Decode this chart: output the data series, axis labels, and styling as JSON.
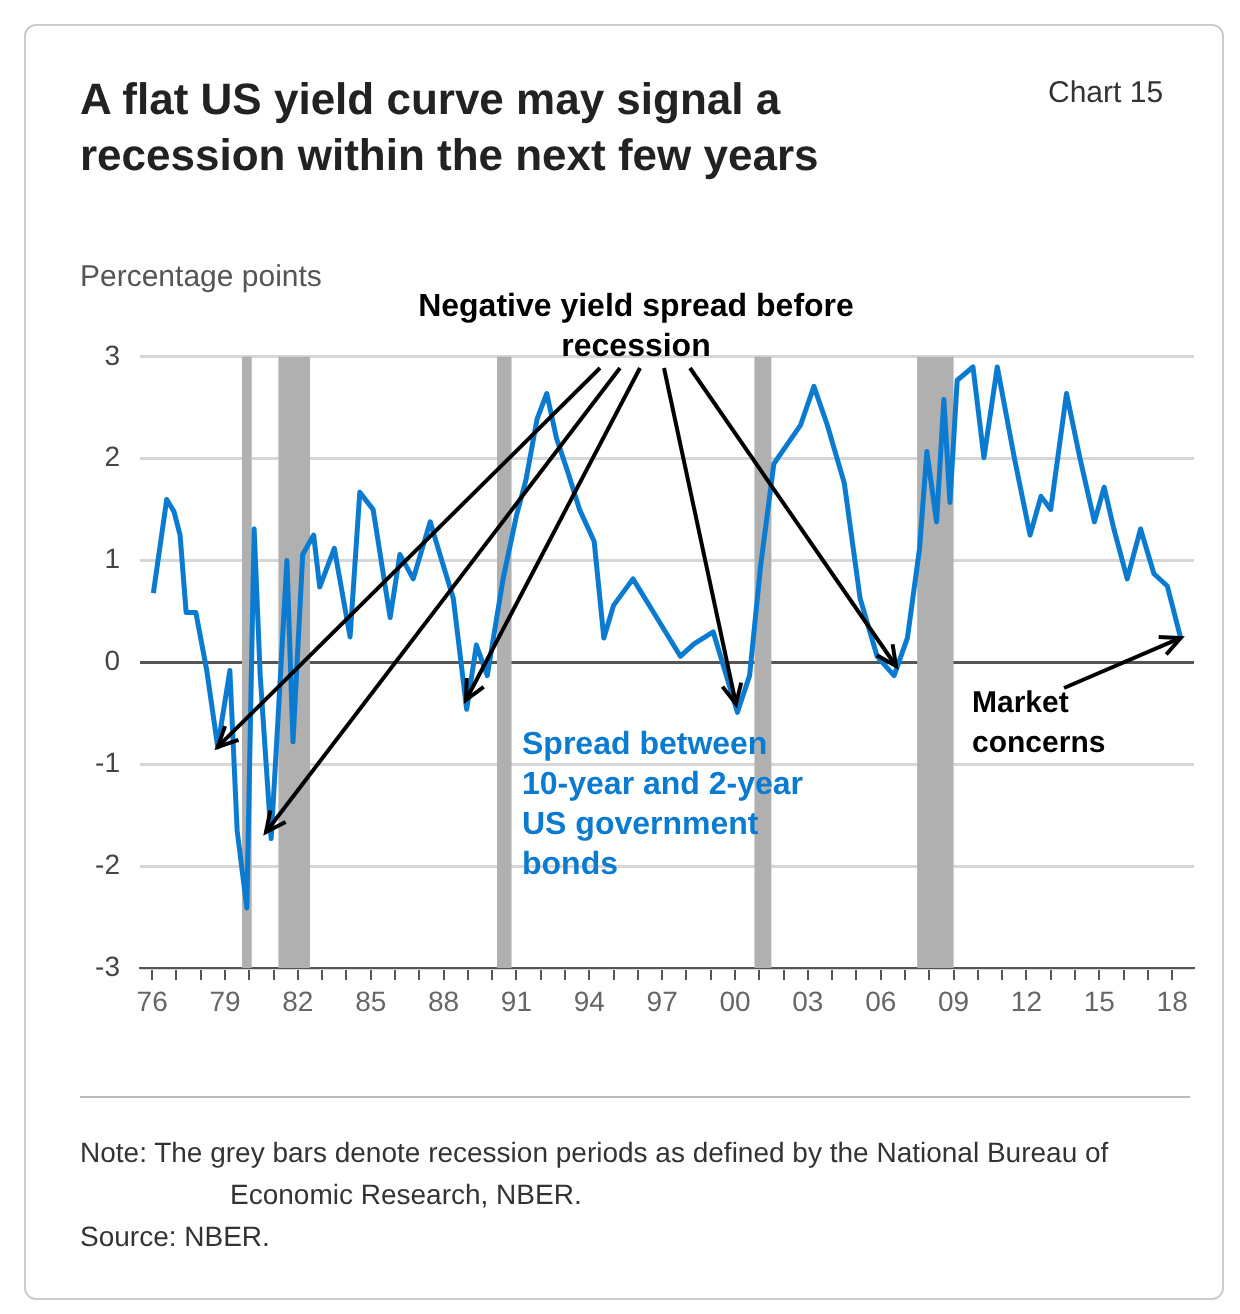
{
  "chart_data": {
    "type": "line",
    "title": "A flat US yield curve may signal a recession within the next few years",
    "subtitle": "Chart 15",
    "ylabel": "Percentage points",
    "annotations": [
      {
        "text": "Negative yield spread before recession",
        "x": 1978.7,
        "y": -0.83
      },
      {
        "text": "Market concerns",
        "x": 2018.35,
        "y": 0.24
      },
      "Note: The grey bars denote recession periods as defined by the National Bureau of Economic Research, NBER.",
      "Source: NBER."
    ],
    "series": [
      {
        "name": "Spread between 10-year and 2-year US government bonds",
        "color": "#0a7bd0",
        "x": [
          1976.05,
          1976.6,
          1976.9,
          1977.15,
          1977.4,
          1977.8,
          1978.25,
          1978.7,
          1979.2,
          1979.5,
          1979.9,
          1980.2,
          1980.45,
          1980.9,
          1981.1,
          1981.55,
          1981.8,
          1982.2,
          1982.65,
          1982.9,
          1983.5,
          1984.15,
          1984.55,
          1985.1,
          1985.8,
          1986.2,
          1986.75,
          1987.45,
          1987.85,
          1988.4,
          1988.95,
          1989.35,
          1989.8,
          1990.45,
          1991.0,
          1991.4,
          1991.85,
          1992.25,
          1992.65,
          1993.1,
          1993.6,
          1994.2,
          1994.6,
          1995.0,
          1995.8,
          1996.65,
          1997.75,
          1998.3,
          1999.1,
          2000.1,
          2000.6,
          2001.05,
          2001.6,
          2002.15,
          2002.7,
          2003.25,
          2003.8,
          2004.5,
          2005.15,
          2005.85,
          2006.55,
          2007.1,
          2007.6,
          2007.9,
          2008.3,
          2008.6,
          2008.85,
          2009.15,
          2009.8,
          2010.25,
          2010.8,
          2011.5,
          2012.15,
          2012.6,
          2013.0,
          2013.65,
          2014.2,
          2014.8,
          2015.2,
          2015.6,
          2016.15,
          2016.7,
          2017.25,
          2017.8,
          2018.35
        ],
        "values": [
          0.68,
          1.6,
          1.48,
          1.25,
          0.49,
          0.49,
          -0.08,
          -0.83,
          -0.08,
          -1.65,
          -2.41,
          1.31,
          -0.13,
          -1.73,
          -0.9,
          1.0,
          -0.78,
          1.06,
          1.25,
          0.74,
          1.12,
          0.25,
          1.67,
          1.5,
          0.44,
          1.06,
          0.82,
          1.38,
          1.06,
          0.63,
          -0.46,
          0.17,
          -0.13,
          0.82,
          1.44,
          1.8,
          2.39,
          2.64,
          2.2,
          1.88,
          1.5,
          1.19,
          0.24,
          0.56,
          0.82,
          0.49,
          0.06,
          0.18,
          0.3,
          -0.49,
          -0.13,
          0.94,
          1.95,
          2.14,
          2.33,
          2.71,
          2.33,
          1.76,
          0.63,
          0.06,
          -0.13,
          0.24,
          1.12,
          2.07,
          1.38,
          2.58,
          1.57,
          2.77,
          2.9,
          2.01,
          2.9,
          2.01,
          1.25,
          1.63,
          1.5,
          2.64,
          2.01,
          1.38,
          1.72,
          1.31,
          0.82,
          1.31,
          0.87,
          0.75,
          0.24
        ]
      }
    ],
    "xlim": [
      1975.5,
      2018.9
    ],
    "xticks": [
      {
        "value": 1976,
        "label": "76"
      },
      {
        "value": 1977,
        "label": null
      },
      {
        "value": 1978,
        "label": null
      },
      {
        "value": 1979,
        "label": "79"
      },
      {
        "value": 1980,
        "label": null
      },
      {
        "value": 1981,
        "label": null
      },
      {
        "value": 1982,
        "label": "82"
      },
      {
        "value": 1983,
        "label": null
      },
      {
        "value": 1984,
        "label": null
      },
      {
        "value": 1985,
        "label": "85"
      },
      {
        "value": 1986,
        "label": null
      },
      {
        "value": 1987,
        "label": null
      },
      {
        "value": 1988,
        "label": "88"
      },
      {
        "value": 1989,
        "label": null
      },
      {
        "value": 1990,
        "label": null
      },
      {
        "value": 1991,
        "label": "91"
      },
      {
        "value": 1992,
        "label": null
      },
      {
        "value": 1993,
        "label": null
      },
      {
        "value": 1994,
        "label": "94"
      },
      {
        "value": 1995,
        "label": null
      },
      {
        "value": 1996,
        "label": null
      },
      {
        "value": 1997,
        "label": "97"
      },
      {
        "value": 1998,
        "label": null
      },
      {
        "value": 1999,
        "label": null
      },
      {
        "value": 2000,
        "label": "00"
      },
      {
        "value": 2001,
        "label": null
      },
      {
        "value": 2002,
        "label": null
      },
      {
        "value": 2003,
        "label": "03"
      },
      {
        "value": 2004,
        "label": null
      },
      {
        "value": 2005,
        "label": null
      },
      {
        "value": 2006,
        "label": "06"
      },
      {
        "value": 2007,
        "label": null
      },
      {
        "value": 2008,
        "label": null
      },
      {
        "value": 2009,
        "label": "09"
      },
      {
        "value": 2010,
        "label": null
      },
      {
        "value": 2011,
        "label": null
      },
      {
        "value": 2012,
        "label": "12"
      },
      {
        "value": 2013,
        "label": null
      },
      {
        "value": 2014,
        "label": null
      },
      {
        "value": 2015,
        "label": "15"
      },
      {
        "value": 2016,
        "label": null
      },
      {
        "value": 2017,
        "label": null
      },
      {
        "value": 2018,
        "label": "18"
      }
    ],
    "ylim": [
      -3,
      3
    ],
    "yticks": [
      -3,
      -2,
      -1,
      0,
      1,
      2,
      3
    ],
    "bands": [
      {
        "axis": "x",
        "from": 1979.7,
        "to": 1980.1,
        "color": "#b0b0b0"
      },
      {
        "axis": "x",
        "from": 1981.2,
        "to": 1982.5,
        "color": "#b0b0b0"
      },
      {
        "axis": "x",
        "from": 1990.2,
        "to": 1990.8,
        "color": "#b0b0b0"
      },
      {
        "axis": "x",
        "from": 2000.8,
        "to": 2001.5,
        "color": "#b0b0b0"
      },
      {
        "axis": "x",
        "from": 2007.5,
        "to": 2009.0,
        "color": "#b0b0b0"
      }
    ],
    "grid": "y",
    "legend": false,
    "marker": "none",
    "line_style": "solid"
  }
}
